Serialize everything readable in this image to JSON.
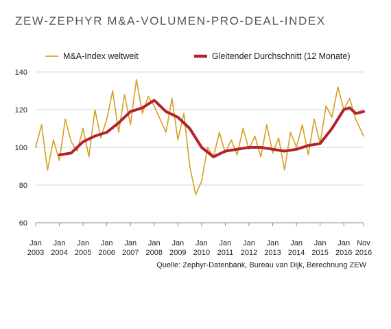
{
  "title": "ZEW-ZEPHYR M&A-VOLUMEN-PRO-DEAL-INDEX",
  "source": "Quelle: Zephyr-Datenbank, Bureau van Dijk, Berechnung ZEW",
  "colors": {
    "index": "#D9A22A",
    "average": "#B2232C",
    "grid": "#d3d3d3",
    "axis": "#888888"
  },
  "chart_data": {
    "type": "line",
    "title": "ZEW-ZEPHYR M&A-VOLUMEN-PRO-DEAL-INDEX",
    "xlabel": "",
    "ylabel": "",
    "ylim": [
      60,
      140
    ],
    "yticks": [
      60,
      80,
      100,
      120,
      140
    ],
    "xticks": [
      {
        "month": "Jan",
        "year": "2003"
      },
      {
        "month": "Jan",
        "year": "2004"
      },
      {
        "month": "Jan",
        "year": "2005"
      },
      {
        "month": "Jan",
        "year": "2006"
      },
      {
        "month": "Jan",
        "year": "2007"
      },
      {
        "month": "Jan",
        "year": "2008"
      },
      {
        "month": "Jan",
        "year": "2009"
      },
      {
        "month": "Jan",
        "year": "2010"
      },
      {
        "month": "Jan",
        "year": "2011"
      },
      {
        "month": "Jan",
        "year": "2012"
      },
      {
        "month": "Jan",
        "year": "2013"
      },
      {
        "month": "Jan",
        "year": "2014"
      },
      {
        "month": "Jan",
        "year": "2015"
      },
      {
        "month": "Jan",
        "year": "2016"
      },
      {
        "month": "Nov",
        "year": "2016"
      }
    ],
    "grid": true,
    "legend_position": "top",
    "series": [
      {
        "name": "M&A-Index weltweit",
        "x": [
          "2003-01",
          "2003-04",
          "2003-07",
          "2003-10",
          "2004-01",
          "2004-04",
          "2004-07",
          "2004-10",
          "2005-01",
          "2005-04",
          "2005-07",
          "2005-10",
          "2006-01",
          "2006-04",
          "2006-07",
          "2006-10",
          "2007-01",
          "2007-04",
          "2007-07",
          "2007-10",
          "2008-01",
          "2008-04",
          "2008-07",
          "2008-10",
          "2009-01",
          "2009-04",
          "2009-07",
          "2009-10",
          "2010-01",
          "2010-04",
          "2010-07",
          "2010-10",
          "2011-01",
          "2011-04",
          "2011-07",
          "2011-10",
          "2012-01",
          "2012-04",
          "2012-07",
          "2012-10",
          "2013-01",
          "2013-04",
          "2013-07",
          "2013-10",
          "2014-01",
          "2014-04",
          "2014-07",
          "2014-10",
          "2015-01",
          "2015-04",
          "2015-07",
          "2015-10",
          "2016-01",
          "2016-04",
          "2016-07",
          "2016-11"
        ],
        "values": [
          100,
          112,
          88,
          104,
          93,
          115,
          103,
          98,
          110,
          95,
          120,
          105,
          115,
          130,
          108,
          128,
          112,
          136,
          118,
          127,
          122,
          115,
          108,
          126,
          104,
          118,
          90,
          75,
          82,
          100,
          95,
          108,
          97,
          104,
          96,
          110,
          99,
          106,
          95,
          112,
          97,
          105,
          88,
          108,
          100,
          112,
          96,
          115,
          102,
          122,
          116,
          132,
          120,
          126,
          115,
          106
        ]
      },
      {
        "name": "Gleitender Durchschnitt (12 Monate)",
        "x": [
          "2004-01",
          "2004-07",
          "2005-01",
          "2005-07",
          "2006-01",
          "2006-07",
          "2007-01",
          "2007-07",
          "2008-01",
          "2008-04",
          "2008-07",
          "2009-01",
          "2009-07",
          "2010-01",
          "2010-07",
          "2011-01",
          "2011-07",
          "2012-01",
          "2012-07",
          "2013-01",
          "2013-07",
          "2014-01",
          "2014-07",
          "2015-01",
          "2015-07",
          "2016-01",
          "2016-04",
          "2016-07",
          "2016-11"
        ],
        "values": [
          96,
          97,
          103,
          106,
          108,
          113,
          119,
          121,
          125,
          122,
          119,
          116,
          110,
          100,
          95,
          98,
          99,
          100,
          100,
          99,
          98,
          99,
          101,
          102,
          110,
          120,
          121,
          118,
          119
        ]
      }
    ]
  }
}
